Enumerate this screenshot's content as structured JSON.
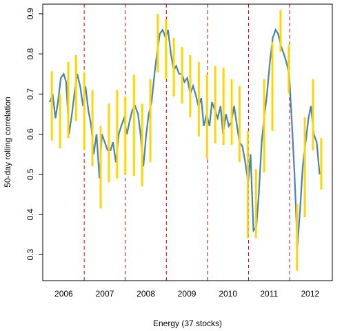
{
  "chart_data": {
    "type": "line",
    "xlabel": "Energy (37 stocks)",
    "ylabel": "50-day rolling correlation",
    "xlim": [
      2005.99,
      2013.04
    ],
    "ylim": [
      0.235,
      0.924
    ],
    "xticks": [
      {
        "value": 2006.5,
        "label": "2006"
      },
      {
        "value": 2007.5,
        "label": "2007"
      },
      {
        "value": 2008.5,
        "label": "2008"
      },
      {
        "value": 2009.5,
        "label": "2009"
      },
      {
        "value": 2010.5,
        "label": "2010"
      },
      {
        "value": 2011.5,
        "label": "2011"
      },
      {
        "value": 2012.5,
        "label": "2012"
      }
    ],
    "yticks": [
      0.3,
      0.4,
      0.5,
      0.6,
      0.7,
      0.8,
      0.9
    ],
    "vlines": [
      2007,
      2008,
      2009,
      2010,
      2011,
      2012
    ],
    "vline_color": "#cc0000",
    "series": [
      {
        "color": "#4682b4",
        "x": [
          2006.16,
          2006.23,
          2006.3,
          2006.36,
          2006.43,
          2006.5,
          2006.56,
          2006.63,
          2006.7,
          2006.76,
          2006.83,
          2006.9,
          2006.97,
          2007.03,
          2007.1,
          2007.17,
          2007.23,
          2007.3,
          2007.37,
          2007.43,
          2007.5,
          2007.57,
          2007.64,
          2007.7,
          2007.77,
          2007.84,
          2007.9,
          2007.97,
          2008.04,
          2008.1,
          2008.17,
          2008.24,
          2008.31,
          2008.37,
          2008.44,
          2008.51,
          2008.57,
          2008.64,
          2008.71,
          2008.77,
          2008.84,
          2008.91,
          2008.98,
          2009.04,
          2009.11,
          2009.18,
          2009.24,
          2009.31,
          2009.38,
          2009.44,
          2009.51,
          2009.58,
          2009.65,
          2009.71,
          2009.78,
          2009.85,
          2009.91,
          2009.98,
          2010.05,
          2010.11,
          2010.18,
          2010.25,
          2010.32,
          2010.38,
          2010.45,
          2010.52,
          2010.58,
          2010.65,
          2010.72,
          2010.78,
          2010.85,
          2010.92,
          2010.99,
          2011.05,
          2011.12,
          2011.19,
          2011.25,
          2011.32,
          2011.39,
          2011.45,
          2011.52,
          2011.59,
          2011.66,
          2011.72,
          2011.79,
          2011.86,
          2011.92,
          2011.99,
          2012.06,
          2012.12,
          2012.19,
          2012.26,
          2012.32,
          2012.39,
          2012.46,
          2012.52,
          2012.59,
          2012.66,
          2012.73
        ],
        "values": [
          0.68,
          0.7,
          0.64,
          0.68,
          0.74,
          0.75,
          0.73,
          0.6,
          0.65,
          0.7,
          0.75,
          0.72,
          0.67,
          0.72,
          0.66,
          0.62,
          0.55,
          0.6,
          0.49,
          0.6,
          0.58,
          0.56,
          0.56,
          0.58,
          0.53,
          0.6,
          0.62,
          0.64,
          0.6,
          0.63,
          0.66,
          0.67,
          0.65,
          0.6,
          0.52,
          0.6,
          0.65,
          0.68,
          0.75,
          0.8,
          0.85,
          0.86,
          0.84,
          0.86,
          0.8,
          0.76,
          0.77,
          0.75,
          0.75,
          0.73,
          0.74,
          0.7,
          0.72,
          0.7,
          0.67,
          0.69,
          0.62,
          0.65,
          0.62,
          0.68,
          0.66,
          0.64,
          0.67,
          0.6,
          0.65,
          0.62,
          0.63,
          0.67,
          0.62,
          0.58,
          0.57,
          0.53,
          0.48,
          0.55,
          0.36,
          0.37,
          0.45,
          0.58,
          0.65,
          0.7,
          0.78,
          0.84,
          0.86,
          0.85,
          0.82,
          0.8,
          0.78,
          0.75,
          0.62,
          0.5,
          0.32,
          0.42,
          0.52,
          0.58,
          0.64,
          0.67,
          0.6,
          0.58,
          0.5
        ]
      }
    ],
    "segments": {
      "color": "#ffd700",
      "x": [
        2006.21,
        2006.41,
        2006.61,
        2006.8,
        2007.0,
        2007.2,
        2007.4,
        2007.6,
        2007.8,
        2008.0,
        2008.21,
        2008.41,
        2008.61,
        2008.79,
        2008.99,
        2009.18,
        2009.38,
        2009.58,
        2009.79,
        2009.99,
        2010.19,
        2010.39,
        2010.59,
        2010.78,
        2010.98,
        2011.18,
        2011.38,
        2011.58,
        2011.78,
        2011.98,
        2012.18,
        2012.37,
        2012.57,
        2012.77
      ],
      "high": [
        0.757,
        0.7,
        0.78,
        0.797,
        0.754,
        0.71,
        0.62,
        0.676,
        0.71,
        0.694,
        0.748,
        0.676,
        0.737,
        0.9,
        0.886,
        0.84,
        0.817,
        0.797,
        0.78,
        0.748,
        0.77,
        0.765,
        0.737,
        0.72,
        0.608,
        0.513,
        0.737,
        0.83,
        0.909,
        0.822,
        0.427,
        0.642,
        0.737,
        0.59
      ],
      "low": [
        0.584,
        0.565,
        0.59,
        0.633,
        0.56,
        0.52,
        0.415,
        0.48,
        0.49,
        0.5,
        0.496,
        0.47,
        0.53,
        0.754,
        0.737,
        0.694,
        0.676,
        0.642,
        0.594,
        0.539,
        0.577,
        0.573,
        0.573,
        0.53,
        0.341,
        0.341,
        0.505,
        0.608,
        0.805,
        0.702,
        0.26,
        0.393,
        0.56,
        0.462
      ]
    }
  }
}
